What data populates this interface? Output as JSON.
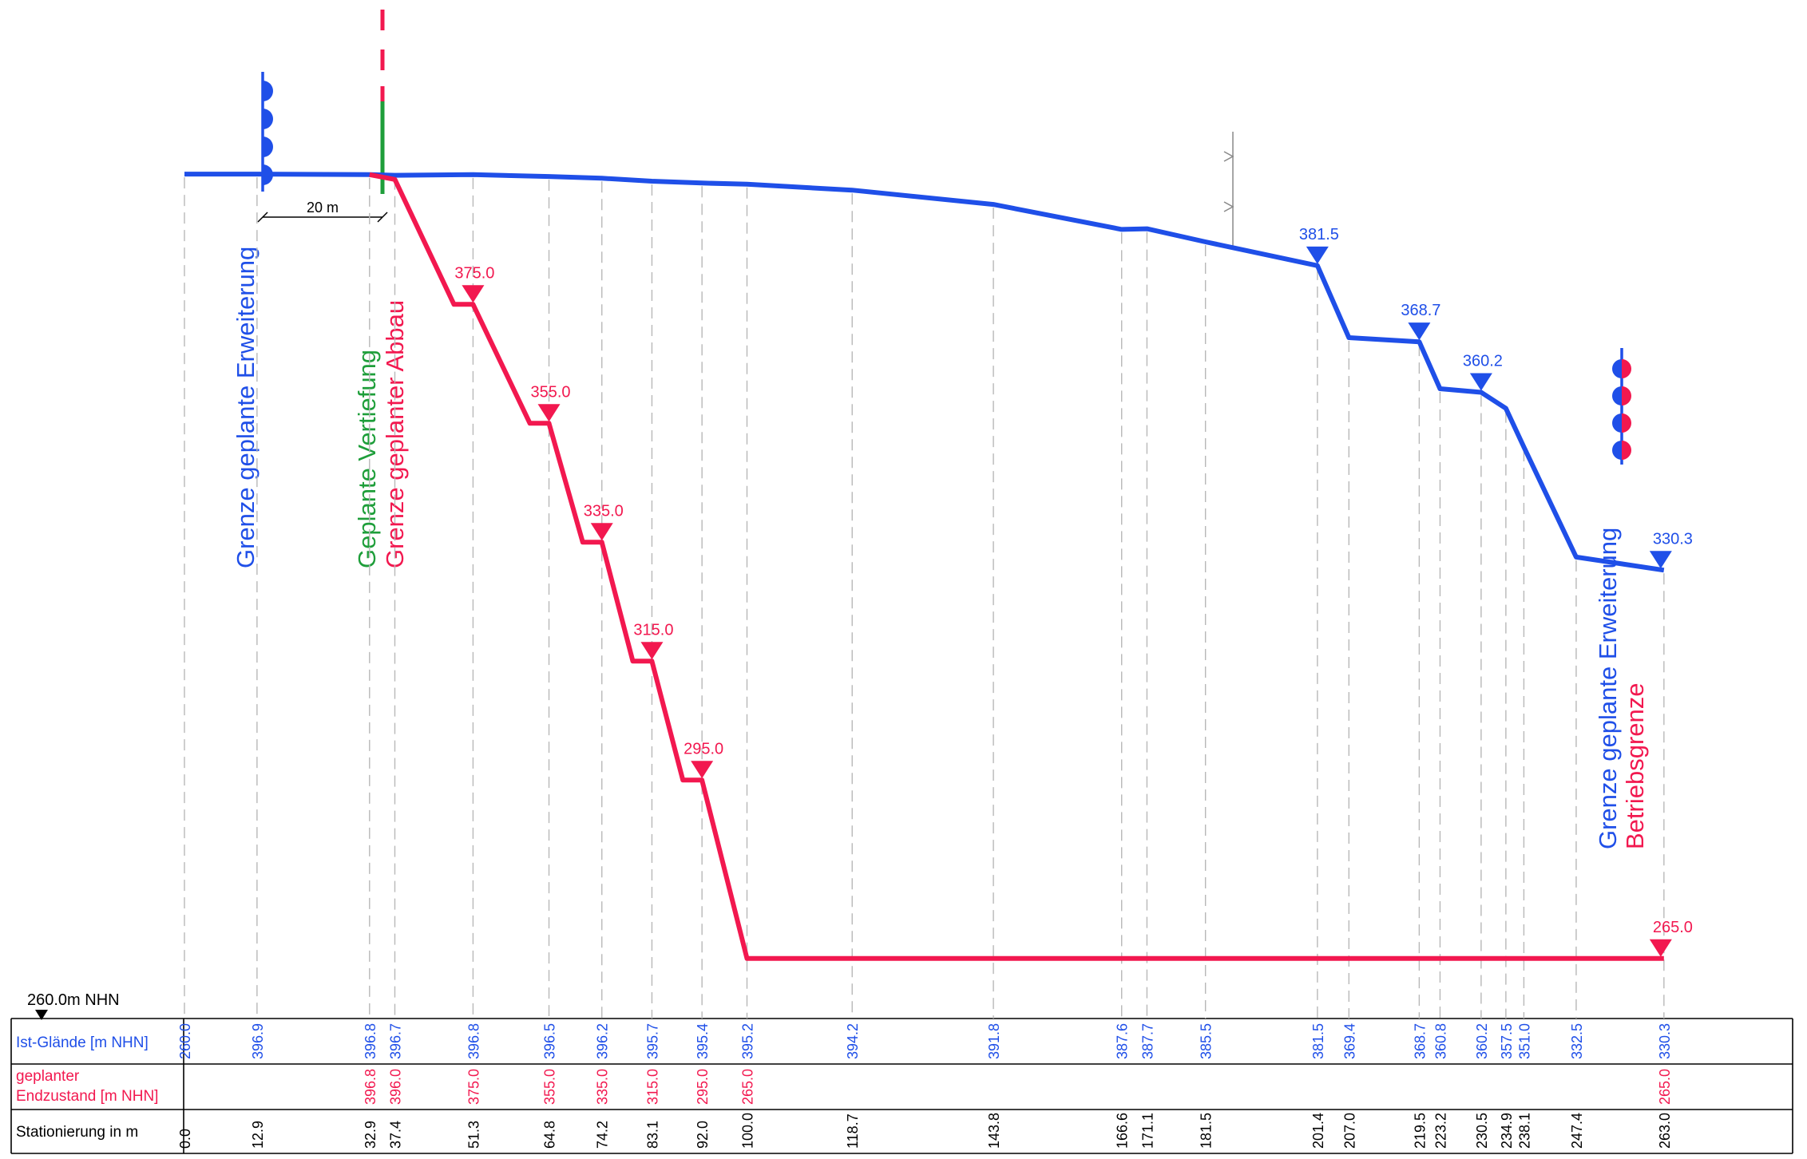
{
  "colors": {
    "terrain": "#1f4fe8",
    "plan": "#f2184f",
    "deepen": "#1e9e3a",
    "grid": "#b8b8b8",
    "text": "#000000"
  },
  "datum": {
    "label": "260.0m NHN"
  },
  "scale_bar": {
    "label": "20 m"
  },
  "labels": {
    "left_expansion": "Grenze geplante Erweiterung",
    "deepening": "Geplante Vertiefung",
    "mining_limit": "Grenze geplanter Abbau",
    "right_expansion": "Grenze geplante Erweiterung",
    "operation_limit": "Betriebsgrenze"
  },
  "table": {
    "row_headers": [
      "Ist-Glände [m NHN]",
      "geplanter",
      "Endzustand [m NHN]",
      "Stationierung in m"
    ],
    "terrain": [
      {
        "st": 0.0,
        "v": "260.0"
      },
      {
        "st": 12.9,
        "v": "396.9"
      },
      {
        "st": 32.9,
        "v": "396.8"
      },
      {
        "st": 37.4,
        "v": "396.7"
      },
      {
        "st": 51.3,
        "v": "396.8"
      },
      {
        "st": 64.8,
        "v": "396.5"
      },
      {
        "st": 74.2,
        "v": "396.2"
      },
      {
        "st": 83.1,
        "v": "395.7"
      },
      {
        "st": 92.0,
        "v": "395.4"
      },
      {
        "st": 100.0,
        "v": "395.2"
      },
      {
        "st": 118.7,
        "v": "394.2"
      },
      {
        "st": 143.8,
        "v": "391.8"
      },
      {
        "st": 166.6,
        "v": "387.6"
      },
      {
        "st": 171.1,
        "v": "387.7"
      },
      {
        "st": 181.5,
        "v": "385.5"
      },
      {
        "st": 201.4,
        "v": "381.5"
      },
      {
        "st": 207.0,
        "v": "369.4"
      },
      {
        "st": 219.5,
        "v": "368.7"
      },
      {
        "st": 223.2,
        "v": "360.8"
      },
      {
        "st": 230.5,
        "v": "360.2"
      },
      {
        "st": 234.9,
        "v": "357.5"
      },
      {
        "st": 238.1,
        "v": "351.0"
      },
      {
        "st": 247.4,
        "v": "332.5"
      },
      {
        "st": 263.0,
        "v": "330.3"
      }
    ],
    "plan": [
      {
        "st": 32.9,
        "v": "396.8"
      },
      {
        "st": 37.4,
        "v": "396.0"
      },
      {
        "st": 51.3,
        "v": "375.0"
      },
      {
        "st": 64.8,
        "v": "355.0"
      },
      {
        "st": 74.2,
        "v": "335.0"
      },
      {
        "st": 83.1,
        "v": "315.0"
      },
      {
        "st": 92.0,
        "v": "295.0"
      },
      {
        "st": 100.0,
        "v": "265.0"
      },
      {
        "st": 263.0,
        "v": "265.0"
      }
    ],
    "stations": [
      "0.0",
      "12.9",
      "32.9",
      "37.4",
      "51.3",
      "64.8",
      "74.2",
      "83.1",
      "92.0",
      "100.0",
      "118.7",
      "143.8",
      "166.6",
      "171.1",
      "181.5",
      "201.4",
      "207.0",
      "219.5",
      "223.2",
      "230.5",
      "234.9",
      "238.1",
      "247.4",
      "263.0"
    ]
  },
  "markers": {
    "plan_levels": [
      {
        "st": 51.3,
        "label": "375.0"
      },
      {
        "st": 64.8,
        "label": "355.0"
      },
      {
        "st": 74.2,
        "label": "335.0"
      },
      {
        "st": 83.1,
        "label": "315.0"
      },
      {
        "st": 92.0,
        "label": "295.0"
      },
      {
        "st": 263.0,
        "label": "265.0"
      }
    ],
    "terrain_levels": [
      {
        "st": 201.4,
        "label": "381.5"
      },
      {
        "st": 219.5,
        "label": "368.7"
      },
      {
        "st": 230.5,
        "label": "360.2"
      },
      {
        "st": 263.0,
        "label": "330.3"
      }
    ]
  }
}
